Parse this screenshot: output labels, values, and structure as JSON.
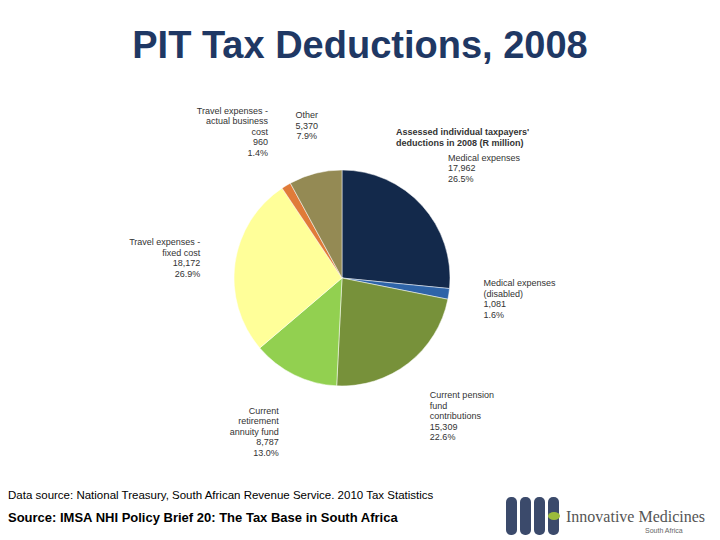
{
  "chart_data": {
    "type": "pie",
    "title": "PIT Tax Deductions, 2008",
    "subtitle": "Assessed individual taxpayers' deductions in 2008 (R million)",
    "categories": [
      "Medical expenses",
      "Medical expenses (disabled)",
      "Current pension fund contributions",
      "Current retirement annuity fund",
      "Travel expenses - fixed cost",
      "Travel expenses - actual business cost",
      "Other"
    ],
    "values": [
      17962,
      1081,
      15309,
      8787,
      18172,
      960,
      5370
    ],
    "value_labels": [
      "17,962",
      "1,081",
      "15,309",
      "8,787",
      "18,172",
      "960",
      "5,370"
    ],
    "percentages": [
      26.5,
      1.6,
      22.6,
      13.0,
      26.9,
      1.4,
      7.9
    ],
    "percentage_labels": [
      "26.5%",
      "1.6%",
      "22.6%",
      "13.0%",
      "26.9%",
      "1.4%",
      "7.9%"
    ],
    "colors": [
      "#13294b",
      "#2e64a8",
      "#77913a",
      "#92d050",
      "#ffff99",
      "#e07b39",
      "#948a54"
    ],
    "data_labels": true,
    "data_source": "Data source: National Treasury, South African Revenue Service. 2010 Tax Statistics",
    "source": "Source: IMSA NHI Policy Brief 20: The Tax Base in South Africa",
    "logo_text": "Innovative Medicines",
    "logo_subtext": "South Africa"
  }
}
